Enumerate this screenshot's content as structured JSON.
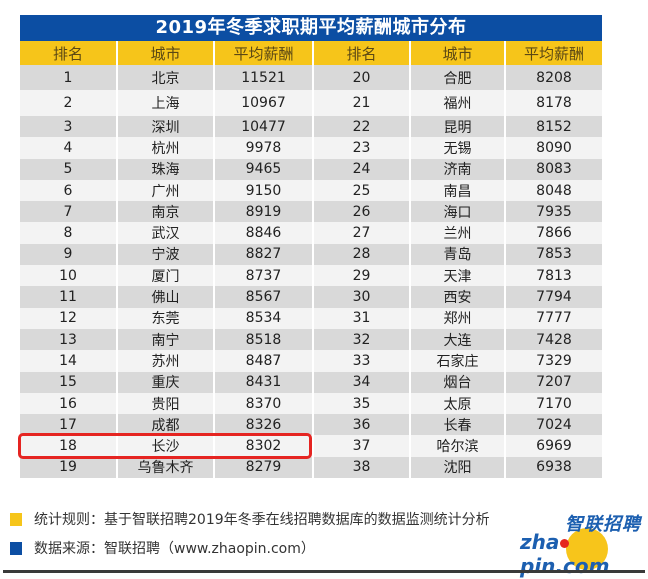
{
  "title": "2019年冬季求职期平均薪酬城市分布",
  "headers": [
    "排名",
    "城市",
    "平均薪酬",
    "排名",
    "城市",
    "平均薪酬"
  ],
  "rows": [
    {
      "rank_a": "1",
      "city_a": "北京",
      "salary_a": "11521",
      "rank_b": "20",
      "city_b": "合肥",
      "salary_b": "8208"
    },
    {
      "rank_a": "2",
      "city_a": "上海",
      "salary_a": "10967",
      "rank_b": "21",
      "city_b": "福州",
      "salary_b": "8178"
    },
    {
      "rank_a": "3",
      "city_a": "深圳",
      "salary_a": "10477",
      "rank_b": "22",
      "city_b": "昆明",
      "salary_b": "8152"
    },
    {
      "rank_a": "4",
      "city_a": "杭州",
      "salary_a": "9978",
      "rank_b": "23",
      "city_b": "无锡",
      "salary_b": "8090"
    },
    {
      "rank_a": "5",
      "city_a": "珠海",
      "salary_a": "9465",
      "rank_b": "24",
      "city_b": "济南",
      "salary_b": "8083"
    },
    {
      "rank_a": "6",
      "city_a": "广州",
      "salary_a": "9150",
      "rank_b": "25",
      "city_b": "南昌",
      "salary_b": "8048"
    },
    {
      "rank_a": "7",
      "city_a": "南京",
      "salary_a": "8919",
      "rank_b": "26",
      "city_b": "海口",
      "salary_b": "7935"
    },
    {
      "rank_a": "8",
      "city_a": "武汉",
      "salary_a": "8846",
      "rank_b": "27",
      "city_b": "兰州",
      "salary_b": "7866"
    },
    {
      "rank_a": "9",
      "city_a": "宁波",
      "salary_a": "8827",
      "rank_b": "28",
      "city_b": "青岛",
      "salary_b": "7853"
    },
    {
      "rank_a": "10",
      "city_a": "厦门",
      "salary_a": "8737",
      "rank_b": "29",
      "city_b": "天津",
      "salary_b": "7813"
    },
    {
      "rank_a": "11",
      "city_a": "佛山",
      "salary_a": "8567",
      "rank_b": "30",
      "city_b": "西安",
      "salary_b": "7794"
    },
    {
      "rank_a": "12",
      "city_a": "东莞",
      "salary_a": "8534",
      "rank_b": "31",
      "city_b": "郑州",
      "salary_b": "7777"
    },
    {
      "rank_a": "13",
      "city_a": "南宁",
      "salary_a": "8518",
      "rank_b": "32",
      "city_b": "大连",
      "salary_b": "7428"
    },
    {
      "rank_a": "14",
      "city_a": "苏州",
      "salary_a": "8487",
      "rank_b": "33",
      "city_b": "石家庄",
      "salary_b": "7329"
    },
    {
      "rank_a": "15",
      "city_a": "重庆",
      "salary_a": "8431",
      "rank_b": "34",
      "city_b": "烟台",
      "salary_b": "7207"
    },
    {
      "rank_a": "16",
      "city_a": "贵阳",
      "salary_a": "8370",
      "rank_b": "35",
      "city_b": "太原",
      "salary_b": "7170"
    },
    {
      "rank_a": "17",
      "city_a": "成都",
      "salary_a": "8326",
      "rank_b": "36",
      "city_b": "长春",
      "salary_b": "7024"
    },
    {
      "rank_a": "18",
      "city_a": "长沙",
      "salary_a": "8302",
      "rank_b": "37",
      "city_b": "哈尔滨",
      "salary_b": "6969"
    },
    {
      "rank_a": "19",
      "city_a": "乌鲁木齐",
      "salary_a": "8279",
      "rank_b": "38",
      "city_b": "沈阳",
      "salary_b": "6938"
    }
  ],
  "highlighted_row": {
    "rank": "18",
    "city": "长沙",
    "salary": "8302",
    "color": "#e52421"
  },
  "footer": {
    "rule_label": "统计规则：基于智联招聘2019年冬季在线招聘数据库的数据监测统计分析",
    "rule_color": "#f6c51a",
    "source_label": "数据来源：智联招聘（www.zhaopin.com）",
    "source_color": "#0c4ea3"
  },
  "logo": {
    "chinese": "智联招聘",
    "english_pre": "zha",
    "english_post": "pin.com"
  },
  "colors": {
    "title_bg": "#0c4ea3",
    "header_bg": "#f6c51a",
    "row_dark": "#d9d9d9",
    "row_light": "#f3f3f3"
  }
}
